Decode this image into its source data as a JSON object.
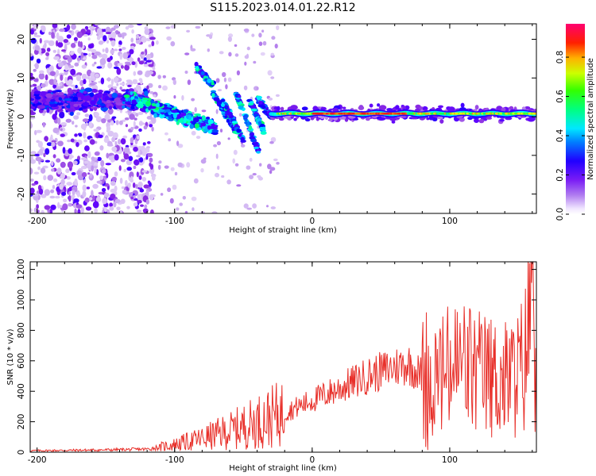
{
  "title": "S115.2023.014.01.22.R12",
  "chart_data": [
    {
      "type": "heatmap",
      "xlabel": "Height of straight line (km)",
      "ylabel": "Frequency (Hz)",
      "xlim": [
        -205,
        163
      ],
      "ylim": [
        -25,
        24
      ],
      "xticks": [
        -200,
        -100,
        0,
        100
      ],
      "yticks": [
        20,
        10,
        0,
        -10,
        -20
      ],
      "grid": false,
      "colorbar": {
        "label": "Normalized spectral amplitude",
        "range": [
          0.0,
          0.97
        ],
        "ticks": [
          0.0,
          0.2,
          0.4,
          0.6,
          0.8
        ],
        "colormap": [
          "#ffffff",
          "#c8a6f0",
          "#8a2be2",
          "#5a00ff",
          "#0000ff",
          "#00aaff",
          "#00ffff",
          "#00ff66",
          "#66ff00",
          "#ffff00",
          "#ffaa00",
          "#ff2200",
          "#ff0066"
        ]
      },
      "features": [
        {
          "name": "noise-band",
          "x": [
            -205,
            -120
          ],
          "y_center": 4,
          "amplitude": 0.3
        },
        {
          "name": "descending-band",
          "x": [
            -135,
            -70
          ],
          "y_start": 5,
          "y_end": -3,
          "amplitude": 0.5
        },
        {
          "name": "steady-line",
          "x": [
            -30,
            163
          ],
          "y_center": 0.8,
          "amplitude": 0.9
        }
      ]
    },
    {
      "type": "line",
      "xlabel": "Height of straight line (km)",
      "ylabel": "SNR (10 * v/v)",
      "xlim": [
        -205,
        163
      ],
      "ylim": [
        0,
        1250
      ],
      "xticks": [
        -200,
        -100,
        0,
        100
      ],
      "yticks": [
        0,
        200,
        400,
        600,
        800,
        1000,
        1200
      ],
      "grid": false,
      "series": [
        {
          "color": "#e8302a",
          "x": [
            -205,
            -180,
            -150,
            -120,
            -100,
            -80,
            -60,
            -40,
            -30,
            -20,
            -10,
            0,
            10,
            20,
            30,
            40,
            50,
            60,
            70,
            80,
            90,
            100,
            110,
            120,
            130,
            140,
            150,
            155,
            160,
            163
          ],
          "y": [
            10,
            12,
            15,
            20,
            50,
            90,
            140,
            200,
            230,
            260,
            300,
            340,
            380,
            420,
            460,
            500,
            530,
            560,
            580,
            500,
            480,
            520,
            560,
            500,
            480,
            460,
            500,
            600,
            1250,
            600
          ]
        }
      ]
    }
  ]
}
